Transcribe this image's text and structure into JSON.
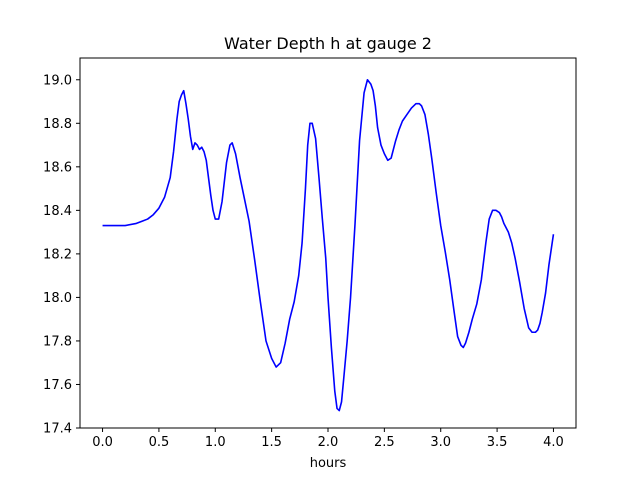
{
  "chart_data": {
    "type": "line",
    "title": "Water Depth h at gauge 2",
    "xlabel": "hours",
    "ylabel": "",
    "xlim": [
      -0.2,
      4.2
    ],
    "ylim": [
      17.4,
      19.1
    ],
    "xticks": [
      0.0,
      0.5,
      1.0,
      1.5,
      2.0,
      2.5,
      3.0,
      3.5,
      4.0
    ],
    "xtick_labels": [
      "0.0",
      "0.5",
      "1.0",
      "1.5",
      "2.0",
      "2.5",
      "3.0",
      "3.5",
      "4.0"
    ],
    "yticks": [
      17.4,
      17.6,
      17.8,
      18.0,
      18.2,
      18.4,
      18.6,
      18.8,
      19.0
    ],
    "ytick_labels": [
      "17.4",
      "17.6",
      "17.8",
      "18.0",
      "18.2",
      "18.4",
      "18.6",
      "18.8",
      "19.0"
    ],
    "grid": false,
    "series": [
      {
        "color": "#0000ff",
        "x": [
          0.0,
          0.1,
          0.2,
          0.3,
          0.35,
          0.4,
          0.45,
          0.5,
          0.55,
          0.6,
          0.63,
          0.66,
          0.68,
          0.7,
          0.72,
          0.74,
          0.76,
          0.78,
          0.8,
          0.82,
          0.84,
          0.86,
          0.88,
          0.9,
          0.92,
          0.94,
          0.96,
          0.98,
          1.0,
          1.03,
          1.06,
          1.1,
          1.13,
          1.15,
          1.18,
          1.22,
          1.26,
          1.3,
          1.35,
          1.4,
          1.45,
          1.5,
          1.54,
          1.58,
          1.62,
          1.66,
          1.7,
          1.74,
          1.77,
          1.8,
          1.82,
          1.84,
          1.86,
          1.89,
          1.92,
          1.95,
          1.98,
          2.0,
          2.03,
          2.06,
          2.08,
          2.1,
          2.12,
          2.14,
          2.17,
          2.2,
          2.24,
          2.28,
          2.32,
          2.35,
          2.38,
          2.4,
          2.42,
          2.44,
          2.47,
          2.5,
          2.53,
          2.56,
          2.58,
          2.6,
          2.63,
          2.66,
          2.7,
          2.74,
          2.78,
          2.81,
          2.83,
          2.86,
          2.89,
          2.92,
          2.96,
          3.0,
          3.04,
          3.08,
          3.12,
          3.15,
          3.18,
          3.2,
          3.22,
          3.25,
          3.28,
          3.32,
          3.36,
          3.4,
          3.43,
          3.46,
          3.49,
          3.52,
          3.54,
          3.56,
          3.58,
          3.6,
          3.63,
          3.66,
          3.7,
          3.74,
          3.78,
          3.81,
          3.84,
          3.86,
          3.88,
          3.9,
          3.93,
          3.96,
          3.98,
          4.0
        ],
        "y": [
          18.33,
          18.33,
          18.33,
          18.34,
          18.35,
          18.36,
          18.38,
          18.41,
          18.46,
          18.55,
          18.67,
          18.82,
          18.9,
          18.93,
          18.95,
          18.89,
          18.82,
          18.74,
          18.68,
          18.71,
          18.7,
          18.68,
          18.69,
          18.67,
          18.63,
          18.55,
          18.47,
          18.4,
          18.36,
          18.36,
          18.44,
          18.62,
          18.7,
          18.71,
          18.66,
          18.55,
          18.45,
          18.35,
          18.17,
          17.98,
          17.8,
          17.72,
          17.68,
          17.7,
          17.79,
          17.9,
          17.98,
          18.1,
          18.25,
          18.5,
          18.7,
          18.8,
          18.8,
          18.73,
          18.55,
          18.36,
          18.18,
          18.0,
          17.77,
          17.57,
          17.49,
          17.48,
          17.52,
          17.63,
          17.8,
          18.0,
          18.34,
          18.72,
          18.94,
          19.0,
          18.98,
          18.95,
          18.88,
          18.78,
          18.7,
          18.66,
          18.63,
          18.64,
          18.68,
          18.72,
          18.77,
          18.81,
          18.84,
          18.87,
          18.89,
          18.89,
          18.88,
          18.84,
          18.75,
          18.64,
          18.48,
          18.33,
          18.21,
          18.08,
          17.93,
          17.82,
          17.78,
          17.77,
          17.79,
          17.84,
          17.9,
          17.97,
          18.08,
          18.25,
          18.36,
          18.4,
          18.4,
          18.39,
          18.37,
          18.34,
          18.32,
          18.3,
          18.25,
          18.18,
          18.07,
          17.95,
          17.86,
          17.84,
          17.84,
          17.85,
          17.88,
          17.93,
          18.02,
          18.15,
          18.22,
          18.29
        ]
      }
    ]
  }
}
